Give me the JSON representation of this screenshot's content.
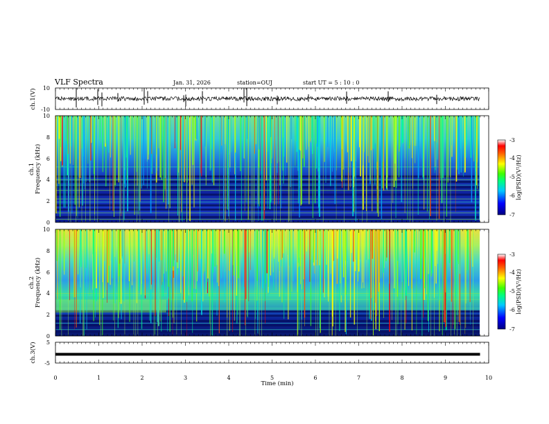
{
  "header": {
    "title": "VLF Spectra",
    "date": "Jan. 31, 2026",
    "station": "station=OUJ",
    "start": "start  UT =  5 : 10 : 0"
  },
  "chart_data": [
    {
      "type": "line",
      "name": "ch1-waveform",
      "ylabel": "ch.1(V)",
      "yticks": [
        "10",
        "-10"
      ],
      "ylim": [
        -10,
        10
      ],
      "xlim": [
        0,
        10
      ],
      "description_values": "noisy trace near 0 V with sparse spikes"
    },
    {
      "type": "heatmap",
      "name": "ch1-spectrogram",
      "ylabel_line1": "ch.1",
      "ylabel_line2": "Frequency (kHz)",
      "yticks": [
        "0",
        "2",
        "4",
        "6",
        "8",
        "10"
      ],
      "ylim": [
        0,
        10
      ],
      "xlim": [
        0,
        10
      ],
      "colorbar": {
        "label": "log(PSD)(V²/Hz)",
        "ticks": [
          "-3",
          "-4",
          "-5",
          "-6",
          "-7"
        ],
        "range": [
          -7,
          -3
        ]
      }
    },
    {
      "type": "heatmap",
      "name": "ch2-spectrogram",
      "ylabel_line1": "ch.2",
      "ylabel_line2": "Frequency (kHz)",
      "yticks": [
        "0",
        "2",
        "4",
        "6",
        "8",
        "10"
      ],
      "ylim": [
        0,
        10
      ],
      "xlim": [
        0,
        10
      ],
      "colorbar": {
        "label": "log(PSD)(V²/Hz)",
        "ticks": [
          "-3",
          "-4",
          "-5",
          "-6",
          "-7"
        ],
        "range": [
          -7,
          -3
        ]
      }
    },
    {
      "type": "line",
      "name": "ch3-waveform",
      "ylabel": "ch.3(V)",
      "yticks": [
        "5",
        "-5"
      ],
      "ylim": [
        -5,
        5
      ],
      "xlim": [
        0,
        10
      ],
      "values": [
        [
          0,
          -0.8
        ],
        [
          9.8,
          -0.8
        ]
      ]
    }
  ],
  "xaxis": {
    "label": "Time (min)",
    "ticks": [
      "0",
      "1",
      "2",
      "3",
      "4",
      "5",
      "6",
      "7",
      "8",
      "9",
      "10"
    ],
    "range": [
      0,
      10
    ]
  }
}
